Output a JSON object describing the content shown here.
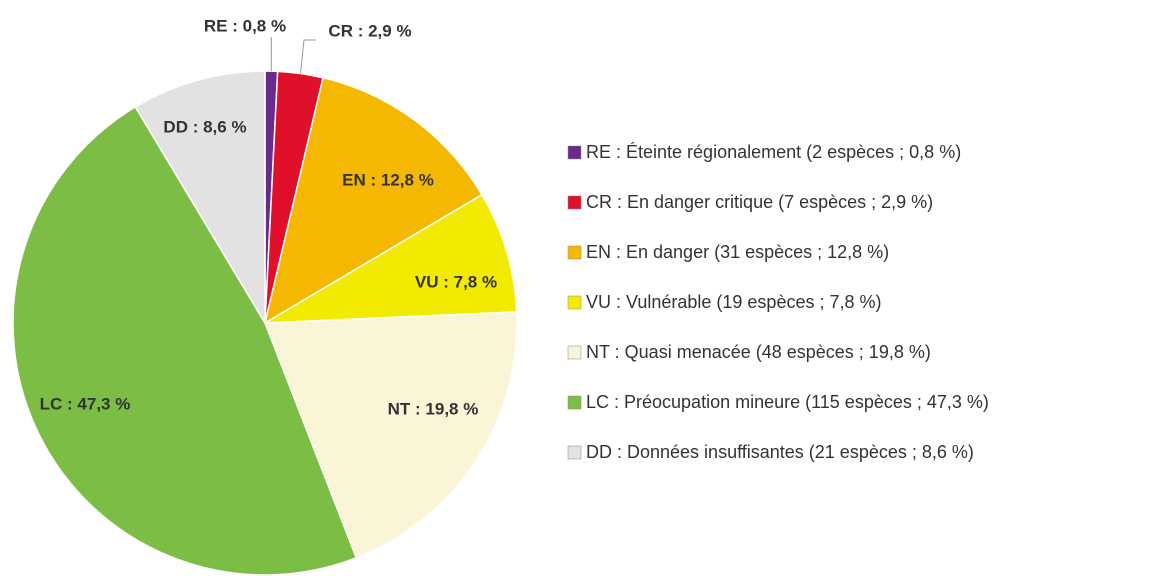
{
  "chart_data": {
    "type": "pie",
    "categories": [
      "RE : Éteinte régionalement (2 espèces ; 0,8 %)",
      "CR : En danger critique (7 espèces ; 2,9 %)",
      "EN : En danger (31 espèces ; 12,8 %)",
      "VU : Vulnérable (19 espèces ; 7,8 %)",
      "NT : Quasi menacée (48 espèces ; 19,8 %)",
      "LC : Préocupation mineure (115 espèces ; 47,3 %)",
      "DD : Données insuffisantes (21 espèces ; 8,6 %)"
    ],
    "values": [
      0.8,
      2.9,
      12.8,
      7.8,
      19.8,
      47.3,
      8.6
    ],
    "value_labels": [
      "RE : 0,8 %",
      "CR : 2,9 %",
      "EN : 12,8 %",
      "VU : 7,8 %",
      "NT : 19,8 %",
      "LC : 47,3 %",
      "DD : 8,6 %"
    ],
    "colors": [
      "#6a2a8a",
      "#e0102a",
      "#f5b800",
      "#f2ea00",
      "#fbf5d8",
      "#7cbd45",
      "#e2e2e2"
    ],
    "legend": "right"
  }
}
